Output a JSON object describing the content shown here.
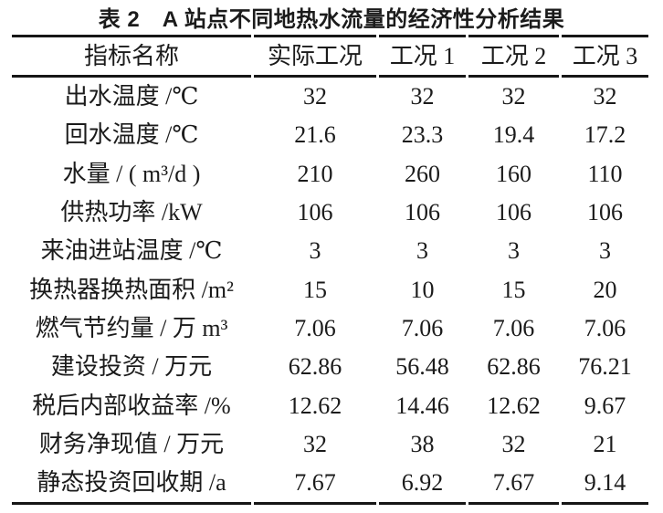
{
  "page": {
    "background": "#ffffff",
    "text_color": "#1b1b1b",
    "rule_color": "#161616"
  },
  "title": "表 2　A 站点不同地热水流量的经济性分析结果",
  "table": {
    "columns": [
      "指标名称",
      "实际工况",
      "工况 1",
      "工况 2",
      "工况 3"
    ],
    "rows": [
      {
        "label": "出水温度 /℃",
        "values": [
          "32",
          "32",
          "32",
          "32"
        ]
      },
      {
        "label": "回水温度 /℃",
        "values": [
          "21.6",
          "23.3",
          "19.4",
          "17.2"
        ]
      },
      {
        "label": "水量 / ( m³/d )",
        "values": [
          "210",
          "260",
          "160",
          "110"
        ]
      },
      {
        "label": "供热功率 /kW",
        "values": [
          "106",
          "106",
          "106",
          "106"
        ]
      },
      {
        "label": "来油进站温度 /℃",
        "values": [
          "3",
          "3",
          "3",
          "3"
        ]
      },
      {
        "label": "换热器换热面积 /m²",
        "values": [
          "15",
          "10",
          "15",
          "20"
        ]
      },
      {
        "label": "燃气节约量 / 万 m³",
        "values": [
          "7.06",
          "7.06",
          "7.06",
          "7.06"
        ]
      },
      {
        "label": "建设投资 / 万元",
        "values": [
          "62.86",
          "56.48",
          "62.86",
          "76.21"
        ]
      },
      {
        "label": "税后内部收益率 /%",
        "values": [
          "12.62",
          "14.46",
          "12.62",
          "9.67"
        ]
      },
      {
        "label": "财务净现值 / 万元",
        "values": [
          "32",
          "38",
          "32",
          "21"
        ]
      },
      {
        "label": "静态投资回收期 /a",
        "values": [
          "7.67",
          "6.92",
          "7.67",
          "9.14"
        ]
      }
    ]
  }
}
